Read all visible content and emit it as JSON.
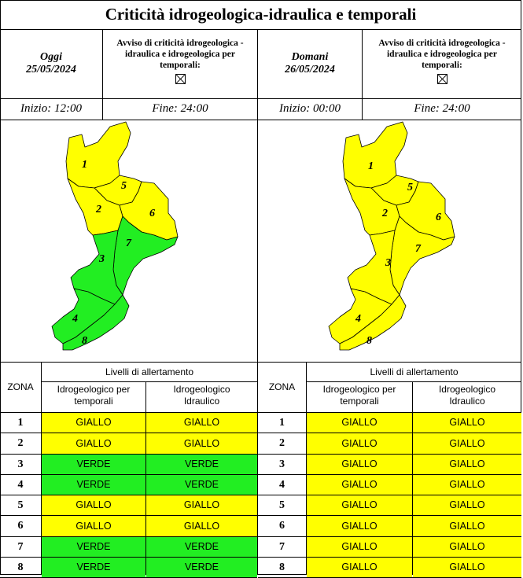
{
  "title": "Criticità idrogeologica-idraulica e temporali",
  "colors": {
    "giallo": "#ffff00",
    "verde": "#22ee22",
    "border": "#000000"
  },
  "today": {
    "label": "Oggi",
    "date": "25/05/2024",
    "notice": "Avviso di criticità idrogeologica - idraulica e idrogeologica per temporali:",
    "checkbox_icon": "crossed-box-icon",
    "start": "Inizio: 12:00",
    "end": "Fine: 24:00",
    "zone_levels": [
      "GIALLO",
      "GIALLO",
      "VERDE",
      "VERDE",
      "GIALLO",
      "GIALLO",
      "VERDE",
      "VERDE"
    ]
  },
  "tomorrow": {
    "label": "Domani",
    "date": "26/05/2024",
    "notice": "Avviso di criticità idrogeologica - idraulica e idrogeologica per temporali:",
    "checkbox_icon": "crossed-box-icon",
    "start": "Inizio: 00:00",
    "end": "Fine: 24:00",
    "zone_levels": [
      "GIALLO",
      "GIALLO",
      "GIALLO",
      "GIALLO",
      "GIALLO",
      "GIALLO",
      "GIALLO",
      "GIALLO"
    ]
  },
  "table": {
    "zona_header": "ZONA",
    "levels_header": "Livelli di allertamento",
    "col1_header": "Idrogeologico per temporali",
    "col2_header": "Idrogeologico Idraulico",
    "zones": [
      "1",
      "2",
      "3",
      "4",
      "5",
      "6",
      "7",
      "8"
    ]
  },
  "today_rows": [
    {
      "zone": "1",
      "a": "GIALLO",
      "b": "GIALLO"
    },
    {
      "zone": "2",
      "a": "GIALLO",
      "b": "GIALLO"
    },
    {
      "zone": "3",
      "a": "VERDE",
      "b": "VERDE"
    },
    {
      "zone": "4",
      "a": "VERDE",
      "b": "VERDE"
    },
    {
      "zone": "5",
      "a": "GIALLO",
      "b": "GIALLO"
    },
    {
      "zone": "6",
      "a": "GIALLO",
      "b": "GIALLO"
    },
    {
      "zone": "7",
      "a": "VERDE",
      "b": "VERDE"
    },
    {
      "zone": "8",
      "a": "VERDE",
      "b": "VERDE"
    }
  ],
  "tomorrow_rows": [
    {
      "zone": "1",
      "a": "GIALLO",
      "b": "GIALLO"
    },
    {
      "zone": "2",
      "a": "GIALLO",
      "b": "GIALLO"
    },
    {
      "zone": "3",
      "a": "GIALLO",
      "b": "GIALLO"
    },
    {
      "zone": "4",
      "a": "GIALLO",
      "b": "GIALLO"
    },
    {
      "zone": "5",
      "a": "GIALLO",
      "b": "GIALLO"
    },
    {
      "zone": "6",
      "a": "GIALLO",
      "b": "GIALLO"
    },
    {
      "zone": "7",
      "a": "GIALLO",
      "b": "GIALLO"
    },
    {
      "zone": "8",
      "a": "GIALLO",
      "b": "GIALLO"
    }
  ]
}
